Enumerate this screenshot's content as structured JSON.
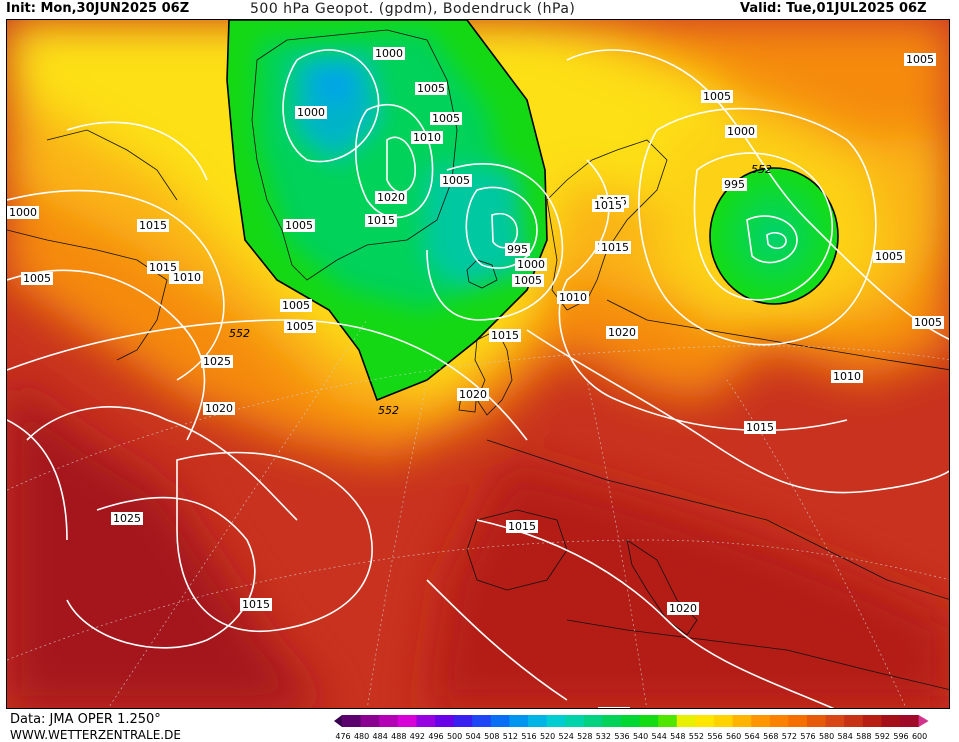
{
  "header": {
    "init": "Init: Mon,30JUN2025 06Z",
    "title": "500 hPa Geopot. (gpdm), Bodendruck (hPa)",
    "valid": "Valid: Tue,01JUL2025 06Z"
  },
  "footer": {
    "data": "Data: JMA OPER 1.250°",
    "site": "WWW.WETTERZENTRALE.DE"
  },
  "legend": {
    "values": [
      "476",
      "480",
      "484",
      "488",
      "492",
      "496",
      "500",
      "504",
      "508",
      "512",
      "516",
      "520",
      "524",
      "528",
      "532",
      "536",
      "540",
      "544",
      "548",
      "552",
      "556",
      "560",
      "564",
      "568",
      "572",
      "576",
      "580",
      "584",
      "588",
      "592",
      "596",
      "600"
    ],
    "colors": [
      "#3a0050",
      "#5c006e",
      "#8a0090",
      "#b400b4",
      "#d800d8",
      "#9600e0",
      "#6a00e8",
      "#3a20f0",
      "#1e46f5",
      "#0a6ef5",
      "#0096f0",
      "#00b4e6",
      "#00cdd2",
      "#00d2aa",
      "#00d282",
      "#00d25a",
      "#00d732",
      "#14dc14",
      "#50e600",
      "#e6f000",
      "#ffe600",
      "#ffd200",
      "#ffb400",
      "#ff9600",
      "#fa8200",
      "#f56e00",
      "#e65a0a",
      "#d74614",
      "#c83214",
      "#b91e14",
      "#a50f19",
      "#a00a28",
      "#d2328c"
    ]
  },
  "map": {
    "isobar_labels": [
      "1000",
      "1005",
      "1000",
      "1005",
      "1010",
      "1005",
      "1020",
      "1015",
      "1005",
      "995",
      "1000",
      "1005",
      "1015",
      "1010",
      "1015",
      "1020",
      "1010",
      "552",
      "1020",
      "1025",
      "1020",
      "1025",
      "1015",
      "1015",
      "1010",
      "1020",
      "1015",
      "1005",
      "1005",
      "1000",
      "552",
      "995",
      "1005",
      "1005",
      "1010",
      "1015",
      "1015",
      "1010",
      "1000",
      "1005",
      "1010",
      "1015",
      "1005",
      "1005",
      "552",
      "1015"
    ],
    "contour_552_label": "552"
  }
}
